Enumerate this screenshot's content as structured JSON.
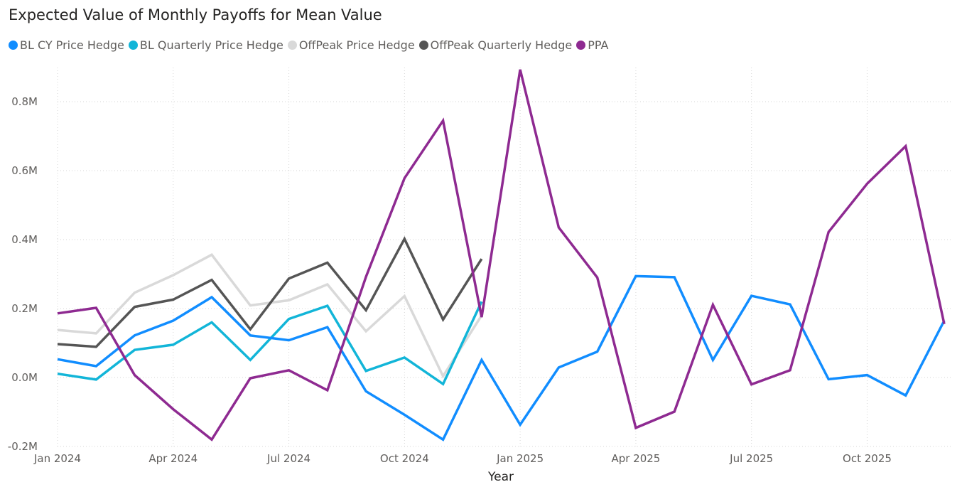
{
  "chart_data": {
    "type": "line",
    "title": "Expected Value of Monthly Payoffs for Mean Value",
    "xlabel": "Year",
    "ylabel": "",
    "ylim": [
      -0.2,
      0.9
    ],
    "yticks": [
      {
        "value": -0.2,
        "label": "-0.2M"
      },
      {
        "value": 0.0,
        "label": "0.0M"
      },
      {
        "value": 0.2,
        "label": "0.2M"
      },
      {
        "value": 0.4,
        "label": "0.4M"
      },
      {
        "value": 0.6,
        "label": "0.6M"
      },
      {
        "value": 0.8,
        "label": "0.8M"
      }
    ],
    "x": [
      "2024-01",
      "2024-02",
      "2024-03",
      "2024-04",
      "2024-05",
      "2024-06",
      "2024-07",
      "2024-08",
      "2024-09",
      "2024-10",
      "2024-11",
      "2024-12",
      "2025-01",
      "2025-02",
      "2025-03",
      "2025-04",
      "2025-05",
      "2025-06",
      "2025-07",
      "2025-08",
      "2025-09",
      "2025-10",
      "2025-11",
      "2025-12"
    ],
    "xticks": [
      {
        "index": 0,
        "label": "Jan 2024"
      },
      {
        "index": 3,
        "label": "Apr 2024"
      },
      {
        "index": 6,
        "label": "Jul 2024"
      },
      {
        "index": 9,
        "label": "Oct 2024"
      },
      {
        "index": 12,
        "label": "Jan 2025"
      },
      {
        "index": 15,
        "label": "Apr 2025"
      },
      {
        "index": 18,
        "label": "Jul 2025"
      },
      {
        "index": 21,
        "label": "Oct 2025"
      }
    ],
    "grid": true,
    "legend_position": "top-left",
    "series": [
      {
        "name": "BL CY Price Hedge",
        "color": "#118DFF",
        "values": [
          0.053,
          0.033,
          0.122,
          0.165,
          0.233,
          0.122,
          0.108,
          0.146,
          -0.04,
          -0.108,
          -0.18,
          0.051,
          -0.137,
          0.029,
          0.075,
          0.294,
          0.291,
          0.051,
          0.237,
          0.212,
          -0.005,
          0.007,
          -0.052,
          0.165
        ]
      },
      {
        "name": "BL Quarterly Price Hedge",
        "color": "#12B5D8",
        "values": [
          0.011,
          -0.006,
          0.08,
          0.095,
          0.16,
          0.051,
          0.17,
          0.208,
          0.019,
          0.058,
          -0.019,
          0.22,
          null,
          null,
          null,
          null,
          null,
          null,
          null,
          null,
          null,
          null,
          null,
          null
        ]
      },
      {
        "name": "OffPeak Price Hedge",
        "color": "#D9D9D9",
        "values": [
          0.138,
          0.128,
          0.246,
          0.297,
          0.356,
          0.209,
          0.224,
          0.27,
          0.134,
          0.236,
          0.004,
          0.18,
          null,
          null,
          null,
          null,
          null,
          null,
          null,
          null,
          null,
          null,
          null,
          null
        ]
      },
      {
        "name": "OffPeak Quarterly Hedge",
        "color": "#555555",
        "values": [
          0.097,
          0.089,
          0.205,
          0.226,
          0.283,
          0.14,
          0.287,
          0.333,
          0.195,
          0.402,
          0.168,
          0.344,
          null,
          null,
          null,
          null,
          null,
          null,
          null,
          null,
          null,
          null,
          null,
          null
        ]
      },
      {
        "name": "PPA",
        "color": "#8E2A91",
        "values": [
          0.186,
          0.202,
          0.007,
          -0.092,
          -0.18,
          -0.002,
          0.021,
          -0.037,
          0.292,
          0.578,
          0.745,
          0.175,
          0.893,
          0.435,
          0.29,
          -0.146,
          -0.099,
          0.211,
          -0.02,
          0.021,
          0.422,
          0.562,
          0.671,
          0.155
        ]
      }
    ]
  }
}
